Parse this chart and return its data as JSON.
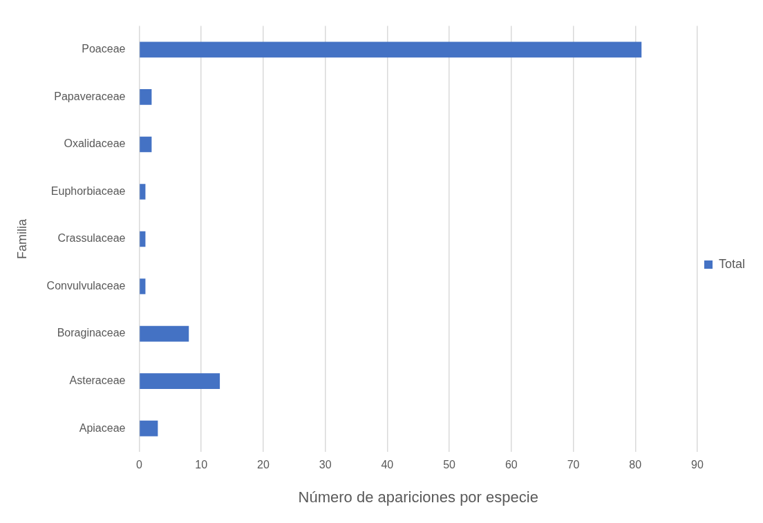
{
  "chart_data": {
    "type": "bar",
    "orientation": "horizontal",
    "xlabel": "Número de apariciones por especie",
    "ylabel": "Familia",
    "categories": [
      "Poaceae",
      "Papaveraceae",
      "Oxalidaceae",
      "Euphorbiaceae",
      "Crassulaceae",
      "Convulvulaceae",
      "Boraginaceae",
      "Asteraceae",
      "Apiaceae"
    ],
    "series": [
      {
        "name": "Total",
        "color": "#4472c4",
        "values": [
          81,
          2,
          2,
          1,
          1,
          1,
          8,
          13,
          3
        ]
      }
    ],
    "xlim": [
      0,
      90
    ],
    "xticks": [
      0,
      10,
      20,
      30,
      40,
      50,
      60,
      70,
      80,
      90
    ],
    "grid": "x",
    "legend": "right"
  }
}
